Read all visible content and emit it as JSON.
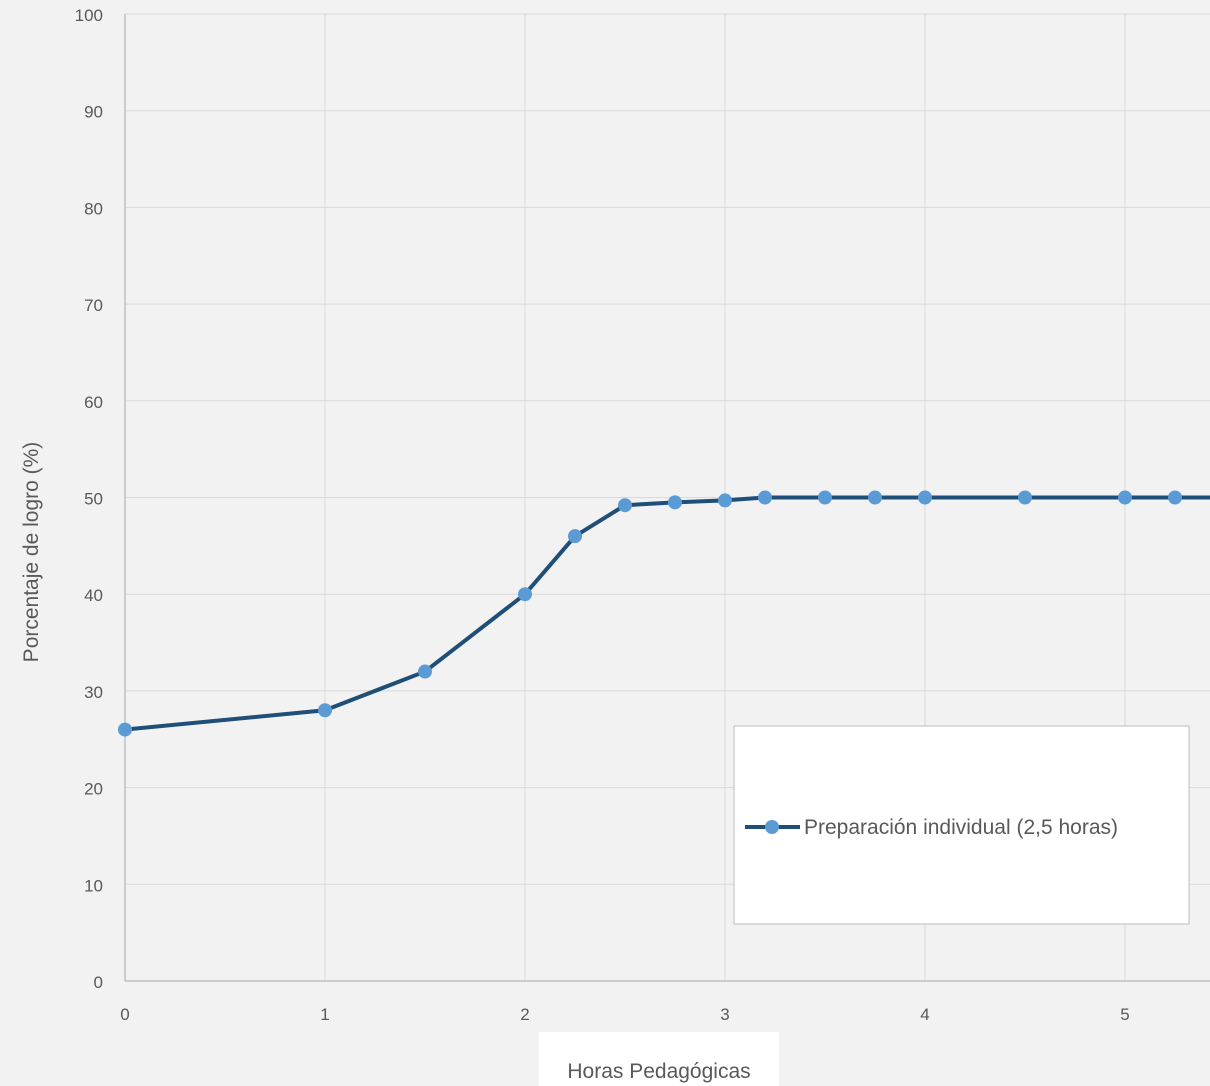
{
  "chart_data": {
    "type": "line",
    "title": "",
    "xlabel": "Horas Pedagógicas",
    "ylabel": "Porcentaje de logro (%)",
    "xlim": [
      0,
      5.43
    ],
    "ylim": [
      0,
      100
    ],
    "x_ticks": [
      0,
      1,
      2,
      3,
      4,
      5
    ],
    "y_ticks": [
      0,
      10,
      20,
      30,
      40,
      50,
      60,
      70,
      80,
      90,
      100
    ],
    "x_tick_labels": [
      "0",
      "1",
      "2",
      "3",
      "4",
      "5"
    ],
    "y_tick_labels": [
      "0",
      "10",
      "20",
      "30",
      "40",
      "50",
      "60",
      "70",
      "80",
      "90",
      "100"
    ],
    "grid": true,
    "legend_position": "bottom-right",
    "series": [
      {
        "name": "Preparación individual (2,5 horas)",
        "color": "#1f4e79",
        "marker_color": "#5b9bd5",
        "x": [
          0,
          1,
          1.5,
          2,
          2.25,
          2.5,
          2.75,
          3,
          3.2,
          3.5,
          3.75,
          4,
          4.5,
          5,
          5.25
        ],
        "y": [
          26,
          28,
          32,
          40,
          46,
          49.2,
          49.5,
          49.7,
          50,
          50,
          50,
          50,
          50,
          50,
          50
        ],
        "extends_right_to": 50
      }
    ]
  }
}
